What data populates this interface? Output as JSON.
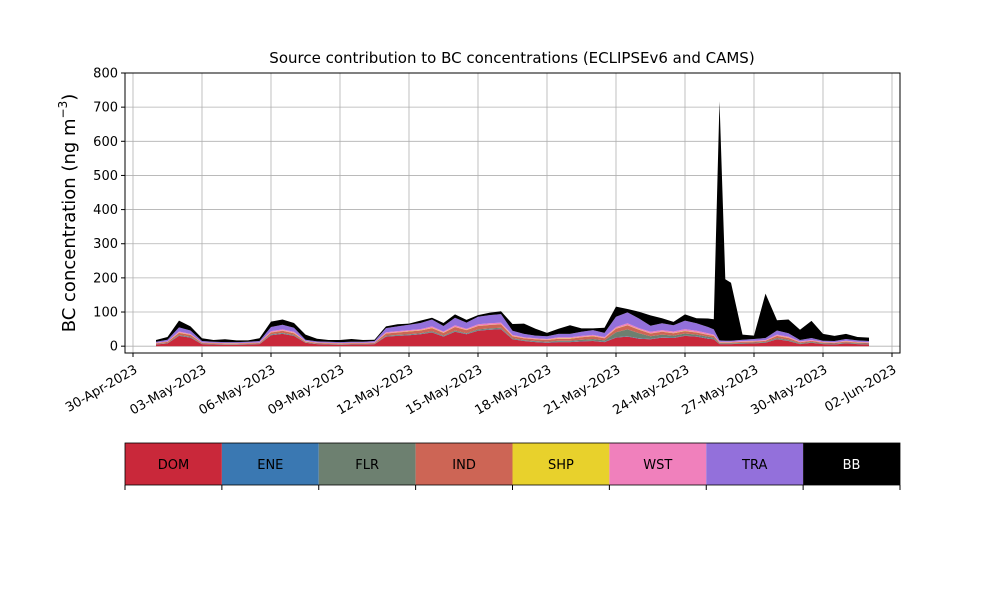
{
  "chart_data": {
    "type": "area",
    "title": "Source contribution to BC concentrations (ECLIPSEv6 and CAMS)",
    "ylabel": "BC concentration (ng m",
    "ylabel_sup": "−3",
    "ylabel_close": ")",
    "xlabel": "",
    "stacked": true,
    "grid": true,
    "x_axis": {
      "type": "date",
      "xlim": [
        "2023-04-30",
        "2023-06-02"
      ],
      "ticks": [
        "2023-04-30",
        "2023-05-03",
        "2023-05-06",
        "2023-05-09",
        "2023-05-12",
        "2023-05-15",
        "2023-05-18",
        "2023-05-21",
        "2023-05-24",
        "2023-05-27",
        "2023-05-30",
        "2023-06-02"
      ],
      "tick_labels": [
        "30-Apr-2023",
        "03-May-2023",
        "06-May-2023",
        "09-May-2023",
        "12-May-2023",
        "15-May-2023",
        "18-May-2023",
        "21-May-2023",
        "24-May-2023",
        "27-May-2023",
        "30-May-2023",
        "02-Jun-2023"
      ]
    },
    "y_axis": {
      "ylim": [
        -20,
        800
      ],
      "ticks": [
        0,
        100,
        200,
        300,
        400,
        500,
        600,
        700,
        800
      ],
      "tick_labels": [
        "0",
        "100",
        "200",
        "300",
        "400",
        "500",
        "600",
        "700",
        "800"
      ]
    },
    "x": [
      "2023-05-01",
      "2023-05-01T12",
      "2023-05-02",
      "2023-05-02T12",
      "2023-05-03",
      "2023-05-03T12",
      "2023-05-04",
      "2023-05-04T12",
      "2023-05-05",
      "2023-05-05T12",
      "2023-05-06",
      "2023-05-06T12",
      "2023-05-07",
      "2023-05-07T12",
      "2023-05-08",
      "2023-05-08T12",
      "2023-05-09",
      "2023-05-09T12",
      "2023-05-10",
      "2023-05-10T12",
      "2023-05-11",
      "2023-05-11T12",
      "2023-05-12",
      "2023-05-12T12",
      "2023-05-13",
      "2023-05-13T12",
      "2023-05-14",
      "2023-05-14T12",
      "2023-05-15",
      "2023-05-15T12",
      "2023-05-16",
      "2023-05-16T12",
      "2023-05-17",
      "2023-05-17T12",
      "2023-05-18",
      "2023-05-18T12",
      "2023-05-19",
      "2023-05-19T12",
      "2023-05-20",
      "2023-05-20T12",
      "2023-05-21",
      "2023-05-21T12",
      "2023-05-22",
      "2023-05-22T12",
      "2023-05-23",
      "2023-05-23T12",
      "2023-05-24",
      "2023-05-24T12",
      "2023-05-25",
      "2023-05-25T06",
      "2023-05-25T12",
      "2023-05-25T18",
      "2023-05-26",
      "2023-05-26T12",
      "2023-05-27",
      "2023-05-27T12",
      "2023-05-28",
      "2023-05-28T12",
      "2023-05-29",
      "2023-05-29T12",
      "2023-05-30",
      "2023-05-30T12",
      "2023-05-31",
      "2023-05-31T12",
      "2023-06-01"
    ],
    "series": [
      {
        "name": "DOM",
        "color": "#c9283a",
        "values": [
          5,
          8,
          30,
          25,
          6,
          5,
          4,
          4,
          5,
          6,
          32,
          36,
          30,
          10,
          6,
          5,
          4,
          5,
          5,
          6,
          28,
          30,
          32,
          35,
          40,
          28,
          42,
          35,
          45,
          48,
          50,
          20,
          15,
          12,
          10,
          12,
          12,
          14,
          15,
          12,
          25,
          28,
          22,
          20,
          25,
          24,
          30,
          28,
          22,
          20,
          6,
          6,
          6,
          7,
          8,
          10,
          20,
          15,
          6,
          10,
          6,
          5,
          8,
          6,
          5
        ]
      },
      {
        "name": "ENE",
        "color": "#3a78b2",
        "values": [
          0.5,
          0.5,
          1,
          1,
          0.5,
          0.5,
          0.5,
          0.5,
          0.5,
          0.5,
          1,
          1,
          1,
          0.5,
          0.5,
          0.5,
          0.5,
          0.5,
          0.5,
          0.5,
          1,
          1,
          1,
          1,
          1,
          1,
          1,
          1,
          1,
          1,
          1,
          1,
          1,
          1,
          1,
          1,
          1,
          1,
          1,
          1,
          1,
          1,
          1,
          1,
          1,
          1,
          1,
          1,
          1,
          1,
          0.5,
          0.5,
          0.5,
          0.5,
          0.5,
          0.5,
          1,
          1,
          0.5,
          0.5,
          0.5,
          0.5,
          0.5,
          0.5,
          0.5
        ]
      },
      {
        "name": "FLR",
        "color": "#6d8070",
        "values": [
          1,
          1,
          2,
          2,
          1,
          1,
          1,
          1,
          1,
          1,
          2,
          2,
          2,
          1,
          1,
          1,
          1,
          1,
          1,
          1,
          2,
          2,
          2,
          2,
          3,
          2,
          3,
          2,
          3,
          3,
          3,
          2,
          2,
          2,
          2,
          3,
          3,
          4,
          5,
          4,
          15,
          20,
          15,
          8,
          8,
          6,
          6,
          5,
          5,
          4,
          2,
          2,
          2,
          2,
          2,
          2,
          3,
          3,
          2,
          2,
          2,
          2,
          2,
          2,
          2
        ]
      },
      {
        "name": "IND",
        "color": "#cd6555",
        "values": [
          2,
          3,
          6,
          5,
          2,
          2,
          2,
          2,
          2,
          2,
          5,
          6,
          5,
          2,
          2,
          2,
          2,
          2,
          2,
          2,
          6,
          7,
          8,
          8,
          9,
          8,
          10,
          9,
          10,
          10,
          10,
          6,
          5,
          5,
          5,
          6,
          6,
          7,
          8,
          6,
          10,
          12,
          10,
          8,
          8,
          7,
          7,
          6,
          5,
          5,
          2,
          2,
          2,
          3,
          3,
          3,
          6,
          5,
          3,
          3,
          2,
          2,
          3,
          2,
          2
        ]
      },
      {
        "name": "SHP",
        "color": "#e8d12c",
        "values": [
          0.5,
          0.5,
          1,
          1,
          0.5,
          0.5,
          0.5,
          0.5,
          0.5,
          0.5,
          1,
          1,
          1,
          0.5,
          0.5,
          0.5,
          0.5,
          0.5,
          0.5,
          0.5,
          1,
          1,
          1,
          1,
          1,
          1,
          1,
          1,
          1,
          1,
          1,
          1,
          1,
          1,
          1,
          1,
          1,
          1,
          1,
          1,
          1,
          1,
          1,
          1,
          1,
          1,
          1,
          1,
          1,
          1,
          0.5,
          0.5,
          0.5,
          0.5,
          0.5,
          0.5,
          1,
          1,
          0.5,
          0.5,
          0.5,
          0.5,
          0.5,
          0.5,
          0.5
        ]
      },
      {
        "name": "WST",
        "color": "#f080bc",
        "values": [
          1,
          1,
          3,
          2,
          1,
          1,
          1,
          1,
          1,
          1,
          3,
          3,
          3,
          1,
          1,
          1,
          1,
          1,
          1,
          1,
          3,
          3,
          3,
          3,
          4,
          3,
          4,
          3,
          4,
          4,
          4,
          3,
          2,
          2,
          2,
          3,
          3,
          3,
          3,
          3,
          4,
          5,
          4,
          4,
          4,
          4,
          5,
          4,
          4,
          3,
          2,
          2,
          2,
          2,
          2,
          2,
          3,
          3,
          2,
          2,
          2,
          2,
          2,
          2,
          2
        ]
      },
      {
        "name": "TRA",
        "color": "#9370db",
        "values": [
          3,
          5,
          12,
          10,
          4,
          3,
          3,
          3,
          3,
          4,
          12,
          14,
          12,
          4,
          3,
          3,
          3,
          3,
          3,
          4,
          12,
          14,
          16,
          18,
          20,
          16,
          22,
          18,
          22,
          24,
          25,
          12,
          10,
          8,
          8,
          10,
          10,
          12,
          14,
          12,
          30,
          32,
          28,
          18,
          20,
          18,
          25,
          22,
          18,
          15,
          4,
          3,
          3,
          4,
          5,
          6,
          12,
          10,
          4,
          6,
          3,
          3,
          5,
          4,
          3
        ]
      },
      {
        "name": "BB",
        "color": "#000000",
        "values": [
          5,
          8,
          20,
          12,
          8,
          5,
          8,
          5,
          4,
          8,
          16,
          15,
          14,
          15,
          8,
          5,
          6,
          8,
          5,
          4,
          5,
          6,
          3,
          7,
          5,
          9,
          10,
          8,
          5,
          7,
          8,
          20,
          30,
          20,
          10,
          15,
          25,
          10,
          5,
          15,
          30,
          10,
          20,
          30,
          15,
          10,
          18,
          15,
          25,
          30,
          700,
          180,
          170,
          15,
          10,
          130,
          30,
          40,
          30,
          50,
          20,
          15,
          15,
          10,
          10
        ]
      }
    ]
  },
  "legend": {
    "items": [
      {
        "label": "DOM",
        "color": "#c9283a",
        "text_color": "#000000"
      },
      {
        "label": "ENE",
        "color": "#3a78b2",
        "text_color": "#000000"
      },
      {
        "label": "FLR",
        "color": "#6d8070",
        "text_color": "#000000"
      },
      {
        "label": "IND",
        "color": "#cd6555",
        "text_color": "#000000"
      },
      {
        "label": "SHP",
        "color": "#e8d12c",
        "text_color": "#000000"
      },
      {
        "label": "WST",
        "color": "#f080bc",
        "text_color": "#000000"
      },
      {
        "label": "TRA",
        "color": "#9370db",
        "text_color": "#000000"
      },
      {
        "label": "BB",
        "color": "#000000",
        "text_color": "#ffffff"
      }
    ]
  }
}
